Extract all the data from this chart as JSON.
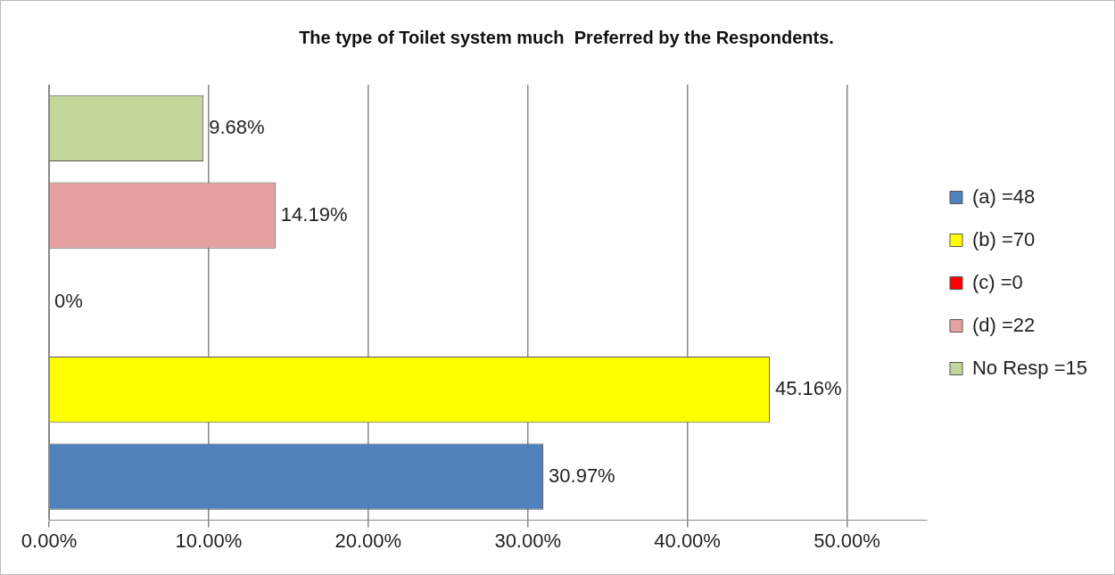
{
  "chart_data": {
    "type": "bar",
    "orientation": "horizontal",
    "title": "The type of Toilet system much  Preferred by the Respondents.",
    "categories": [
      null,
      null,
      null,
      null,
      null
    ],
    "series": [
      {
        "name": "(a) =48",
        "color": "#4f81bd",
        "values": [
          null,
          null,
          null,
          null,
          30.97
        ],
        "value_labels": [
          null,
          null,
          null,
          null,
          "30.97%"
        ]
      },
      {
        "name": "(b) =70",
        "color": "#ffff00",
        "values": [
          null,
          null,
          null,
          45.16,
          null
        ],
        "value_labels": [
          null,
          null,
          null,
          "45.16%",
          null
        ]
      },
      {
        "name": "(c) =0",
        "color": "#ff0000",
        "values": [
          null,
          null,
          0,
          null,
          null
        ],
        "value_labels": [
          null,
          null,
          "0%",
          null,
          null
        ]
      },
      {
        "name": "(d) =22",
        "color": "#e6a0a0",
        "values": [
          null,
          14.19,
          null,
          null,
          null
        ],
        "value_labels": [
          null,
          "14.19%",
          null,
          null,
          null
        ]
      },
      {
        "name": "No Resp =15",
        "color": "#c3d69b",
        "values": [
          9.68,
          null,
          null,
          null,
          null
        ],
        "value_labels": [
          "9.68%",
          null,
          null,
          null,
          null
        ]
      }
    ],
    "xlim": [
      0,
      55
    ],
    "xticks": [
      {
        "value": 0,
        "label": "0.00%"
      },
      {
        "value": 10,
        "label": "10.00%"
      },
      {
        "value": 20,
        "label": "20.00%"
      },
      {
        "value": 30,
        "label": "30.00%"
      },
      {
        "value": 40,
        "label": "40.00%"
      },
      {
        "value": 50,
        "label": "50.00%"
      }
    ],
    "grid": "x",
    "legend": "right"
  }
}
